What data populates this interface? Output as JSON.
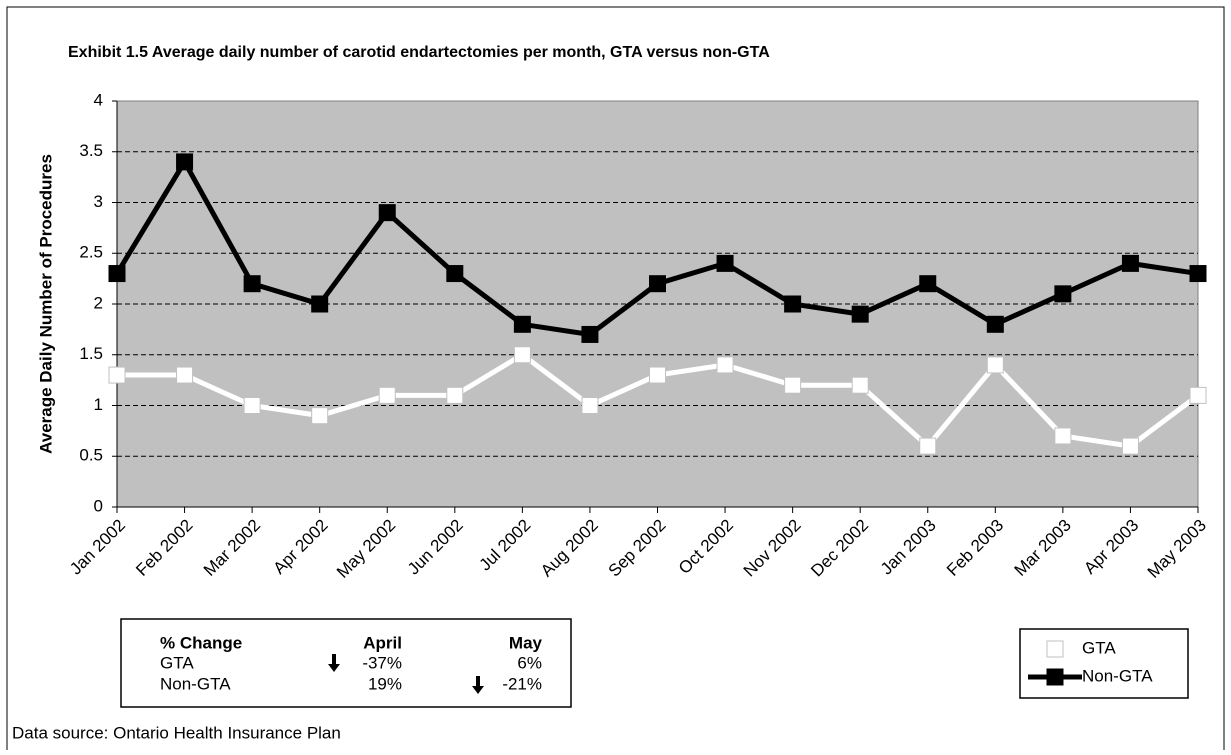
{
  "chart_data": {
    "type": "line",
    "title": "Exhibit 1.5 Average daily number of carotid endartectomies per month, GTA versus non-GTA",
    "y_label": "Average Daily Number of Procedures",
    "categories": [
      "Jan 2002",
      "Feb 2002",
      "Mar 2002",
      "Apr 2002",
      "May 2002",
      "Jun 2002",
      "Jul 2002",
      "Aug 2002",
      "Sep 2002",
      "Oct 2002",
      "Nov 2002",
      "Dec 2002",
      "Jan 2003",
      "Feb 2003",
      "Mar 2003",
      "Apr 2003",
      "May 2003"
    ],
    "series": [
      {
        "name": "GTA",
        "color": "#ffffff",
        "values": [
          1.3,
          1.3,
          1.0,
          0.9,
          1.1,
          1.1,
          1.5,
          1.0,
          1.3,
          1.4,
          1.2,
          1.2,
          0.6,
          1.4,
          0.7,
          0.6,
          1.1
        ]
      },
      {
        "name": "Non-GTA",
        "color": "#000000",
        "values": [
          2.3,
          3.4,
          2.2,
          2.0,
          2.9,
          2.3,
          1.8,
          1.7,
          2.2,
          2.4,
          2.0,
          1.9,
          2.2,
          1.8,
          2.1,
          2.4,
          2.3
        ]
      }
    ],
    "ylim": [
      0,
      4
    ],
    "yticks": [
      0,
      0.5,
      1,
      1.5,
      2,
      2.5,
      3,
      3.5,
      4
    ],
    "grid": true,
    "legend": "bottom-right"
  },
  "table": {
    "header": [
      "% Change",
      "April",
      "May"
    ],
    "rows": [
      [
        "GTA",
        "-37%",
        "6%"
      ],
      [
        "Non-GTA",
        "19%",
        "-21%"
      ]
    ]
  },
  "source": "Data source: Ontario Health Insurance Plan"
}
